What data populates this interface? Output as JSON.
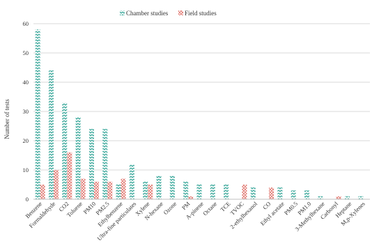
{
  "chart_data": {
    "type": "bar",
    "ylabel": "Number of tests",
    "xlabel": "",
    "title": "",
    "ylim": [
      0,
      60
    ],
    "yticks": [
      0,
      10,
      20,
      30,
      40,
      50,
      60
    ],
    "grid": true,
    "legend_position": "top-center",
    "categories": [
      "Benzene",
      "Formaldehyde",
      "CO2",
      "Toluene",
      "PM10",
      "PM2.5",
      "Ethylbenzene",
      "Ultra-fine particulates",
      "Xylene",
      "N-hexane",
      "Ozone",
      "PM",
      "A-pinene",
      "Octane",
      "TCE",
      "TVOC",
      "2-ethylhexanol",
      "CO",
      "Ethyl acetate",
      "PM0.5",
      "PM1.0",
      "3-Methylhexane",
      "Carbonyl",
      "Heptane",
      "M,p-Xylenes"
    ],
    "series": [
      {
        "name": "Chamber studies",
        "color": "#3aa89b",
        "pattern": "wave",
        "values": [
          58,
          44,
          33,
          28,
          24,
          24,
          5,
          12,
          6,
          8,
          8,
          6,
          5,
          5,
          5,
          0,
          4,
          0,
          4,
          3,
          3,
          1,
          0,
          1,
          1
        ]
      },
      {
        "name": "Field studies",
        "color": "#e0736b",
        "pattern": "cross",
        "values": [
          5,
          10,
          16,
          7,
          6,
          6,
          7,
          0,
          5,
          0,
          0,
          1,
          0,
          0,
          0,
          5,
          0,
          4,
          0,
          0,
          0,
          0,
          1,
          0,
          0
        ]
      }
    ]
  }
}
